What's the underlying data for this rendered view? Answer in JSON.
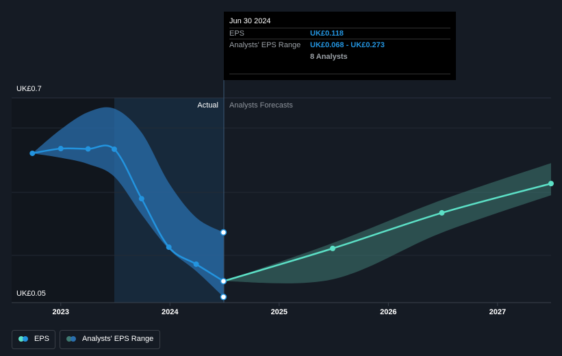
{
  "chart_data": {
    "type": "line",
    "series": [
      {
        "name": "EPS",
        "color": "#2394df",
        "x": [
          2022.74,
          2023.0,
          2023.25,
          2023.49,
          2023.74,
          2023.99,
          2024.24,
          2024.49
        ],
        "values": [
          0.524,
          0.539,
          0.538,
          0.537,
          0.38,
          0.226,
          0.172,
          0.118
        ]
      }
    ],
    "forecast": {
      "color": "#5ce0c6",
      "x": [
        2024.49,
        2025.49,
        2026.49,
        2027.49
      ],
      "values": [
        0.118,
        0.222,
        0.335,
        0.428
      ]
    },
    "range": {
      "name": "Analysts' EPS Range",
      "color": "#2a6fae",
      "x": [
        2022.74,
        2023.0,
        2023.25,
        2023.49,
        2023.74,
        2023.99,
        2024.24,
        2024.49
      ],
      "high": [
        0.524,
        0.6,
        0.655,
        0.666,
        0.59,
        0.43,
        0.32,
        0.273
      ],
      "low": [
        0.524,
        0.51,
        0.49,
        0.45,
        0.33,
        0.22,
        0.15,
        0.068
      ]
    },
    "forecast_range": {
      "color": "#3f7a72",
      "x": [
        2024.49,
        2025.49,
        2026.49,
        2027.49
      ],
      "high": [
        0.118,
        0.239,
        0.376,
        0.493
      ],
      "low": [
        0.118,
        0.124,
        0.272,
        0.391
      ]
    },
    "xlim": [
      2022.55,
      2027.49
    ],
    "xticks": [
      2023,
      2024,
      2025,
      2026,
      2027
    ],
    "ylim": [
      0.05,
      0.7
    ],
    "yticks": [
      {
        "value": 0.05,
        "label": "UK£0.05"
      },
      {
        "value": 0.7,
        "label": "UK£0.7"
      }
    ],
    "actual_label": "Actual",
    "forecast_label": "Analysts Forecasts",
    "tooltip": {
      "date": "Jun 30 2024",
      "eps_label": "EPS",
      "eps_value": "UK£0.118",
      "range_label": "Analysts' EPS Range",
      "range_value": "UK£0.068 - UK£0.273",
      "analysts": "8 Analysts"
    }
  }
}
